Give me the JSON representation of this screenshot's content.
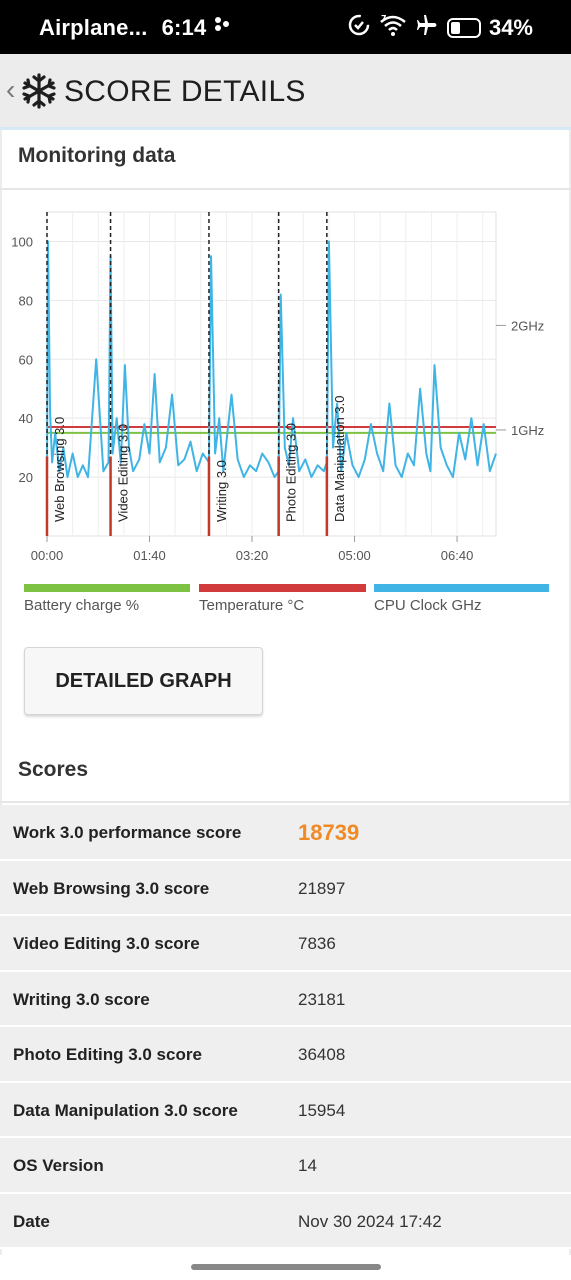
{
  "status_bar": {
    "mode": "Airplane...",
    "time": "6:14",
    "battery": "34%",
    "battery_level": 0.34,
    "icons": [
      "data-saver-icon",
      "wifi-icon",
      "airplane-icon",
      "battery-icon"
    ]
  },
  "app_bar": {
    "back_icon": "chevron-left-icon",
    "logo_icon": "snowflake-icon",
    "title": "SCORE DETAILS"
  },
  "monitoring": {
    "title": "Monitoring data"
  },
  "colors": {
    "battery": "#7dc242",
    "temperature": "#d13b3b",
    "cpu": "#3fb4e5",
    "score_accent": "#f08a24"
  },
  "chart_data": {
    "type": "line",
    "x_ticks": [
      "00:00",
      "01:40",
      "03:20",
      "05:00",
      "06:40"
    ],
    "x_range_minutes": [
      0,
      438
    ],
    "y_left_ticks": [
      100,
      80,
      60,
      40,
      20
    ],
    "y_left_range": [
      0,
      110
    ],
    "y_right_ticks": [
      "2GHz",
      "1GHz"
    ],
    "y_right_values": [
      2,
      1
    ],
    "markers": [
      {
        "label": "Web Browsing 3.0",
        "x": 0
      },
      {
        "label": "Video Editing 3.0",
        "x": 62
      },
      {
        "label": "Writing 3.0",
        "x": 158
      },
      {
        "label": "Photo Editing 3.0",
        "x": 226
      },
      {
        "label": "Data Manipulation 3.0",
        "x": 273
      }
    ],
    "series": [
      {
        "name": "Battery charge %",
        "color": "#7dc242",
        "x": [
          0,
          438
        ],
        "values": [
          35,
          35
        ]
      },
      {
        "name": "Temperature °C",
        "color": "#d13b3b",
        "x": [
          0,
          438
        ],
        "values": [
          37,
          37
        ]
      },
      {
        "name": "CPU Clock GHz",
        "color": "#3fb4e5",
        "x": [
          0,
          1,
          3,
          5,
          8,
          12,
          16,
          20,
          25,
          30,
          35,
          40,
          48,
          55,
          60,
          62,
          64,
          68,
          72,
          76,
          80,
          84,
          90,
          95,
          100,
          105,
          110,
          116,
          122,
          128,
          134,
          140,
          146,
          152,
          158,
          160,
          164,
          168,
          172,
          176,
          180,
          186,
          192,
          198,
          204,
          210,
          216,
          222,
          226,
          228,
          232,
          236,
          240,
          246,
          252,
          258,
          264,
          270,
          273,
          275,
          279,
          283,
          287,
          292,
          298,
          304,
          310,
          316,
          322,
          328,
          334,
          340,
          346,
          352,
          358,
          364,
          370,
          374,
          378,
          384,
          390,
          396,
          402,
          408,
          414,
          420,
          426,
          432,
          438
        ],
        "values": [
          20,
          100,
          42,
          25,
          35,
          22,
          30,
          20,
          28,
          20,
          24,
          20,
          60,
          22,
          25,
          95,
          28,
          40,
          25,
          58,
          30,
          22,
          26,
          38,
          28,
          55,
          25,
          30,
          48,
          24,
          26,
          32,
          22,
          28,
          25,
          95,
          28,
          40,
          22,
          35,
          48,
          26,
          20,
          24,
          22,
          28,
          25,
          20,
          22,
          82,
          30,
          24,
          40,
          22,
          26,
          20,
          24,
          22,
          25,
          100,
          30,
          45,
          22,
          35,
          24,
          20,
          26,
          38,
          28,
          22,
          45,
          24,
          20,
          28,
          24,
          50,
          28,
          22,
          58,
          30,
          24,
          20,
          35,
          26,
          40,
          24,
          38,
          22,
          28
        ]
      }
    ]
  },
  "legend": [
    {
      "label": "Battery charge %",
      "color": "#7dc242"
    },
    {
      "label": "Temperature °C",
      "color": "#d13b3b"
    },
    {
      "label": "CPU Clock GHz",
      "color": "#3fb4e5"
    }
  ],
  "detailed_graph_label": "DETAILED GRAPH",
  "scores": {
    "title": "Scores",
    "rows": [
      {
        "label": "Work 3.0 performance score",
        "value": "18739"
      },
      {
        "label": "Web Browsing 3.0 score",
        "value": "21897"
      },
      {
        "label": "Video Editing 3.0 score",
        "value": "7836"
      },
      {
        "label": "Writing 3.0 score",
        "value": "23181"
      },
      {
        "label": "Photo Editing 3.0 score",
        "value": "36408"
      },
      {
        "label": "Data Manipulation 3.0 score",
        "value": "15954"
      },
      {
        "label": "OS Version",
        "value": "14"
      },
      {
        "label": "Date",
        "value": "Nov 30 2024 17:42"
      }
    ]
  }
}
